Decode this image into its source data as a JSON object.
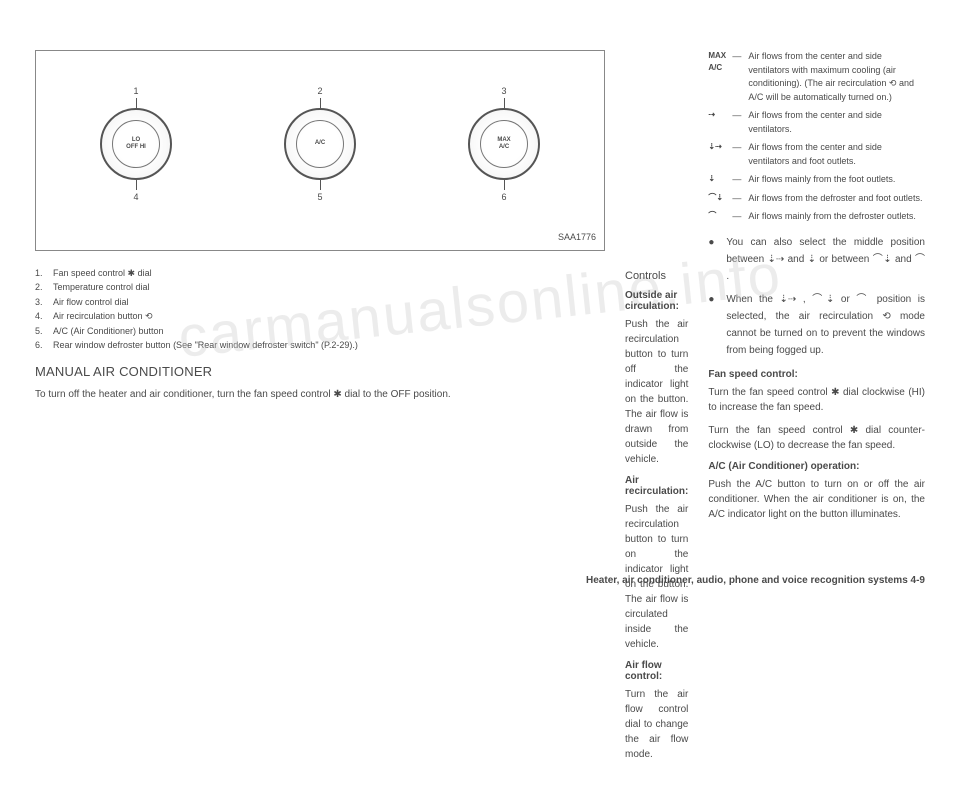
{
  "figure": {
    "dials": [
      {
        "topNum": "1",
        "bottomNum": "4",
        "center": "LO\nOFF  HI"
      },
      {
        "topNum": "2",
        "bottomNum": "5",
        "center": "A/C"
      },
      {
        "topNum": "3",
        "bottomNum": "6",
        "center": "MAX\nA/C"
      }
    ],
    "code": "SAA1776"
  },
  "legend": [
    {
      "num": "1.",
      "text": "Fan speed control ✱ dial"
    },
    {
      "num": "2.",
      "text": "Temperature control dial"
    },
    {
      "num": "3.",
      "text": "Air flow control dial"
    },
    {
      "num": "4.",
      "text": "Air recirculation button ⟲"
    },
    {
      "num": "5.",
      "text": "A/C (Air Conditioner) button"
    },
    {
      "num": "6.",
      "text": "Rear window defroster button (See \"Rear window defroster switch\" (P.2-29).)"
    }
  ],
  "col1": {
    "heading": "MANUAL AIR CONDITIONER",
    "para": "To turn off the heater and air conditioner, turn the fan speed control ✱ dial to the OFF position."
  },
  "col2": {
    "controlsHeading": "Controls",
    "sections": [
      {
        "title": "Outside air circulation:",
        "text": "Push the air recirculation button to turn off the indicator light on the button. The air flow is drawn from outside the vehicle."
      },
      {
        "title": "Air recirculation:",
        "text": "Push the air recirculation button to turn on the indicator light on the button. The air flow is circulated inside the vehicle."
      },
      {
        "title": "Air flow control:",
        "text": "Turn the air flow control dial to change the air flow mode."
      }
    ]
  },
  "col3": {
    "iconList": [
      {
        "icon": "MAX A/C",
        "text": "Air flows from the center and side ventilators with maximum cooling (air conditioning). (The air recirculation ⟲ and A/C will be automatically turned on.)"
      },
      {
        "icon": "⇢",
        "text": "Air flows from the center and side ventilators."
      },
      {
        "icon": "⇣⇢",
        "text": "Air flows from the center and side ventilators and foot outlets."
      },
      {
        "icon": "⇣",
        "text": "Air flows mainly from the foot outlets."
      },
      {
        "icon": "⌒⇣",
        "text": "Air flows from the defroster and foot outlets."
      },
      {
        "icon": "⌒",
        "text": "Air flows mainly from the defroster outlets."
      }
    ],
    "bullets": [
      "You can also select the middle position between ⇣⇢ and ⇣ or between ⌒⇣ and ⌒ .",
      "When the ⇣⇢ , ⌒⇣ or ⌒ position is selected, the air recirculation ⟲ mode cannot be turned on to prevent the windows from being fogged up."
    ],
    "fanHeading": "Fan speed control:",
    "fanPara1": "Turn the fan speed control ✱ dial clockwise (HI) to increase the fan speed.",
    "fanPara2": "Turn the fan speed control ✱ dial counter-clockwise (LO) to decrease the fan speed.",
    "acHeading": "A/C (Air Conditioner) operation:",
    "acPara": "Push the A/C button to turn on or off the air conditioner. When the air conditioner is on, the A/C indicator light on the button illuminates."
  },
  "footer": "Heater, air conditioner, audio, phone and voice recognition systems   4-9",
  "watermark": "carmanualsonline.info"
}
